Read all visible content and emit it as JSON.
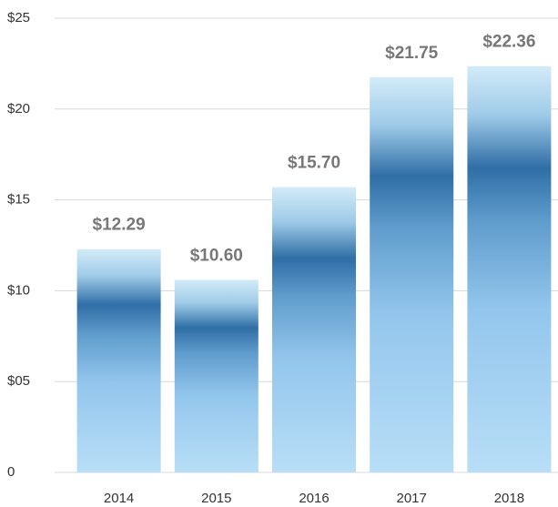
{
  "chart_data": {
    "type": "bar",
    "categories": [
      "2014",
      "2015",
      "2016",
      "2017",
      "2018"
    ],
    "values": [
      12.29,
      10.6,
      15.7,
      21.75,
      22.36
    ],
    "value_labels": [
      "$12.29",
      "$10.60",
      "$15.70",
      "$21.75",
      "$22.36"
    ],
    "ylim": [
      0,
      25
    ],
    "yticks": [
      0,
      {
        "value": 5,
        "label": "$05"
      },
      {
        "value": 10,
        "label": "$10"
      },
      {
        "value": 15,
        "label": "$15"
      },
      {
        "value": 20,
        "label": "$20"
      },
      {
        "value": 25,
        "label": "$25"
      }
    ],
    "grid": true
  }
}
